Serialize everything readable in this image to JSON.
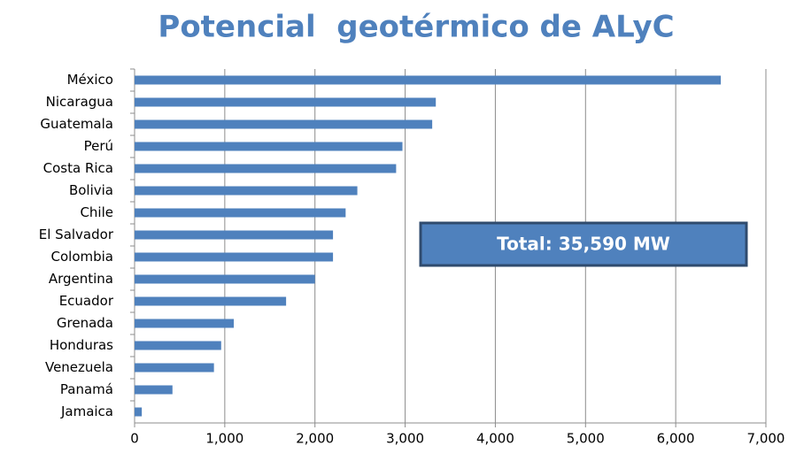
{
  "chart_data": {
    "type": "bar",
    "orientation": "horizontal",
    "title": "Potencial  geotérmico de ALyC",
    "annotation": "Total: 35,590 MW",
    "categories": [
      "México",
      "Nicaragua",
      "Guatemala",
      "Perú",
      "Costa Rica",
      "Bolivia",
      "Chile",
      "El Salvador",
      "Colombia",
      "Argentina",
      "Ecuador",
      "Grenada",
      "Honduras",
      "Venezuela",
      "Panamá",
      "Jamaica"
    ],
    "values": [
      6500,
      3340,
      3300,
      2970,
      2900,
      2470,
      2340,
      2200,
      2200,
      2000,
      1680,
      1100,
      960,
      880,
      420,
      80
    ],
    "color": "#4f81bd",
    "xlim": [
      0,
      7000
    ],
    "xticks": [
      0,
      {
        "value": 1000,
        "label": "1,000"
      },
      {
        "value": 2000,
        "label": "2,000"
      },
      {
        "value": 3000,
        "label": "3,000"
      },
      {
        "value": 4000,
        "label": "4,000"
      },
      {
        "value": 5000,
        "label": "5,000"
      },
      {
        "value": 6000,
        "label": "6,000"
      },
      {
        "value": 7000,
        "label": "7,000"
      }
    ],
    "grid": true
  }
}
